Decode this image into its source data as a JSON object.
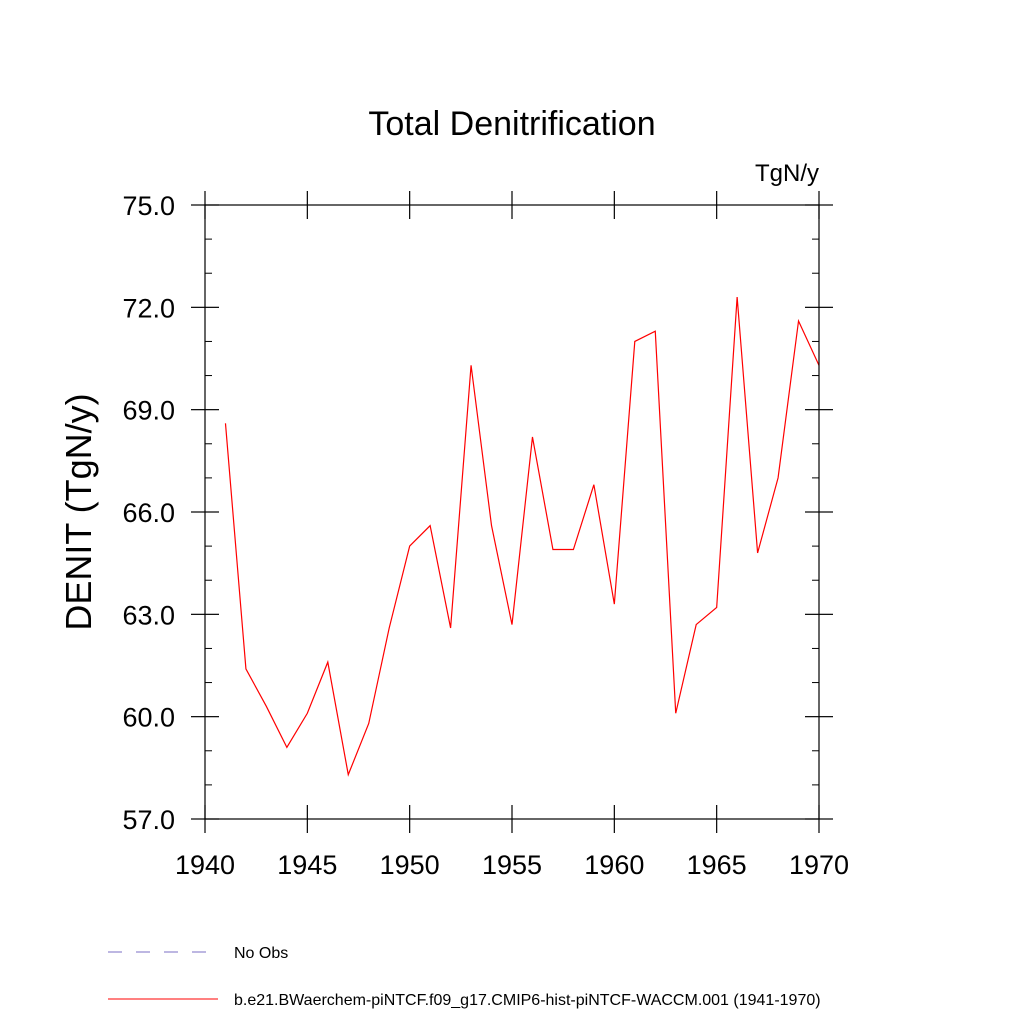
{
  "chart_data": {
    "type": "line",
    "title": "Total Denitrification",
    "units_label": "TgN/y",
    "xlabel": "",
    "ylabel": "DENIT  (TgN/y)",
    "xlim": [
      1940,
      1970
    ],
    "ylim": [
      57.0,
      75.0
    ],
    "x_ticks": [
      "1940",
      "1945",
      "1950",
      "1955",
      "1960",
      "1965",
      "1970"
    ],
    "y_ticks": [
      "57.0",
      "60.0",
      "63.0",
      "66.0",
      "69.0",
      "72.0",
      "75.0"
    ],
    "grid": false,
    "legend_position": "bottom-left",
    "series": [
      {
        "name": "b.e21.BWaerchem-piNTCF.f09_g17.CMIP6-hist-piNTCF-WACCM.001 (1941-1970)",
        "color": "#ff0000",
        "style": "solid",
        "x": [
          1941,
          1942,
          1943,
          1944,
          1945,
          1946,
          1947,
          1948,
          1949,
          1950,
          1951,
          1952,
          1953,
          1954,
          1955,
          1956,
          1957,
          1958,
          1959,
          1960,
          1961,
          1962,
          1963,
          1964,
          1965,
          1966,
          1967,
          1968,
          1969,
          1970
        ],
        "values": [
          68.6,
          61.4,
          60.3,
          59.1,
          60.1,
          61.6,
          58.3,
          59.8,
          62.6,
          65.0,
          65.6,
          62.6,
          70.3,
          65.6,
          62.7,
          68.2,
          64.9,
          64.9,
          66.8,
          63.3,
          71.0,
          71.3,
          60.1,
          62.7,
          63.2,
          72.3,
          64.8,
          67.0,
          71.6,
          70.3
        ]
      }
    ],
    "legend": [
      {
        "label": "No Obs",
        "color": "#7b6fc4",
        "style": "dashed"
      },
      {
        "label": "b.e21.BWaerchem-piNTCF.f09_g17.CMIP6-hist-piNTCF-WACCM.001 (1941-1970)",
        "color": "#ff0000",
        "style": "solid"
      }
    ]
  }
}
